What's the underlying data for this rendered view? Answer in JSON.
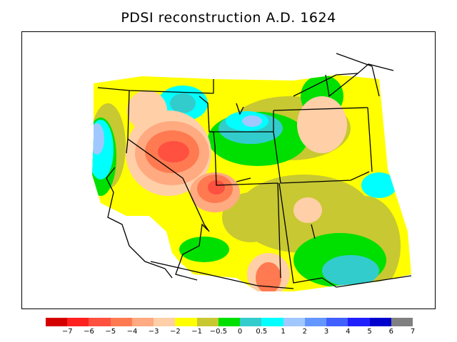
{
  "title": "PDSI reconstruction A.D. 1624",
  "legend": {
    "colors": [
      "#d40000",
      "#ff2020",
      "#ff5040",
      "#ff7a50",
      "#ffaa80",
      "#ffcfa8",
      "#ffff00",
      "#c8c832",
      "#00e000",
      "#33cccc",
      "#00ffff",
      "#a0c8ff",
      "#6496ff",
      "#4060ff",
      "#2020ff",
      "#0000cc",
      "#808080"
    ],
    "labels": [
      "−7",
      "−6",
      "−5",
      "−4",
      "−3",
      "−2",
      "−1",
      "−0.5",
      "0",
      "0.5",
      "1",
      "2",
      "3",
      "4",
      "5",
      "6",
      "7"
    ]
  },
  "map": {
    "fill_colors": {
      "extreme_dry": "#ff5040",
      "severe_dry": "#ff7a50",
      "moderate_dry": "#ffaa80",
      "mild_dry": "#ffcfa8",
      "near_dry": "#ffff00",
      "near_normal": "#c8c832",
      "normal": "#00e000",
      "slightly_wet": "#33cccc",
      "wet": "#00ffff",
      "very_wet": "#a0c8ff"
    }
  }
}
